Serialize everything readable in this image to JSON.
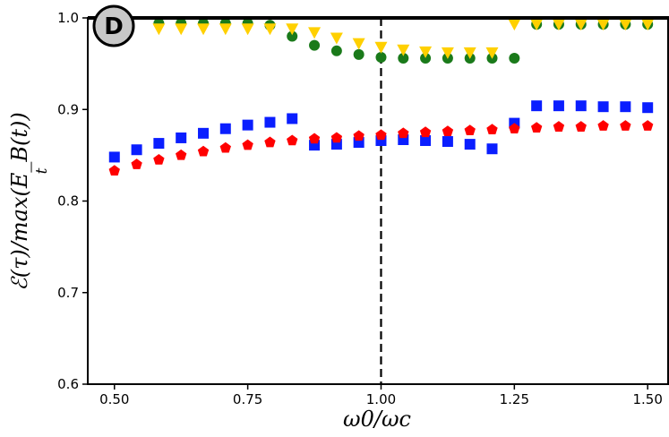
{
  "chart_data": {
    "type": "scatter",
    "panel_label": "D",
    "xlabel": "ω0/ωc",
    "ylabel": "ℰ(τ)/max(E_B(t))",
    "ylabel_sub": "t",
    "xlim": [
      0.45,
      1.54
    ],
    "ylim": [
      0.6,
      1.0
    ],
    "x_ticks": [
      0.5,
      0.75,
      1.0,
      1.25,
      1.5
    ],
    "x_tick_labels": [
      "0.50",
      "0.75",
      "1.00",
      "1.25",
      "1.50"
    ],
    "y_ticks": [
      0.6,
      0.7,
      0.8,
      0.9,
      1.0
    ],
    "y_tick_labels": [
      "0.6",
      "0.7",
      "0.8",
      "0.9",
      "1.0"
    ],
    "vline_x": 1.0,
    "x": [
      0.5,
      0.5417,
      0.5833,
      0.625,
      0.6667,
      0.7083,
      0.75,
      0.7917,
      0.8333,
      0.875,
      0.9167,
      0.9583,
      1.0,
      1.0417,
      1.0833,
      1.125,
      1.1667,
      1.2083,
      1.25,
      1.2917,
      1.3333,
      1.375,
      1.4167,
      1.4583,
      1.5
    ],
    "series": [
      {
        "name": "green circles",
        "marker": "circle",
        "color": "#1a7a1a",
        "values": [
          null,
          null,
          0.994,
          0.994,
          0.994,
          0.994,
          0.994,
          0.992,
          0.98,
          0.97,
          0.964,
          0.96,
          0.957,
          0.956,
          0.956,
          0.956,
          0.956,
          0.956,
          0.956,
          0.993,
          0.993,
          0.993,
          0.993,
          0.993,
          0.993
        ]
      },
      {
        "name": "yellow triangles",
        "marker": "triangle-down",
        "color": "#ffd000",
        "values": [
          null,
          null,
          0.988,
          0.988,
          0.988,
          0.988,
          0.988,
          0.988,
          0.988,
          0.984,
          0.978,
          0.972,
          0.968,
          0.965,
          0.963,
          0.962,
          0.962,
          0.962,
          0.993,
          0.993,
          0.993,
          0.993,
          0.993,
          0.993,
          0.993
        ]
      },
      {
        "name": "blue squares",
        "marker": "square",
        "color": "#0a1eff",
        "values": [
          0.848,
          0.856,
          0.863,
          0.869,
          0.874,
          0.879,
          0.883,
          0.886,
          0.89,
          0.861,
          0.862,
          0.864,
          0.866,
          0.867,
          0.866,
          0.865,
          0.862,
          0.857,
          0.885,
          0.904,
          0.904,
          0.904,
          0.903,
          0.903,
          0.902
        ]
      },
      {
        "name": "red pentagons",
        "marker": "pentagon",
        "color": "#ff0000",
        "values": [
          0.833,
          0.84,
          0.845,
          0.85,
          0.854,
          0.858,
          0.861,
          0.864,
          0.866,
          0.868,
          0.869,
          0.871,
          0.872,
          0.874,
          0.875,
          0.876,
          0.877,
          0.878,
          0.879,
          0.88,
          0.881,
          0.881,
          0.882,
          0.882,
          0.882
        ]
      }
    ]
  }
}
